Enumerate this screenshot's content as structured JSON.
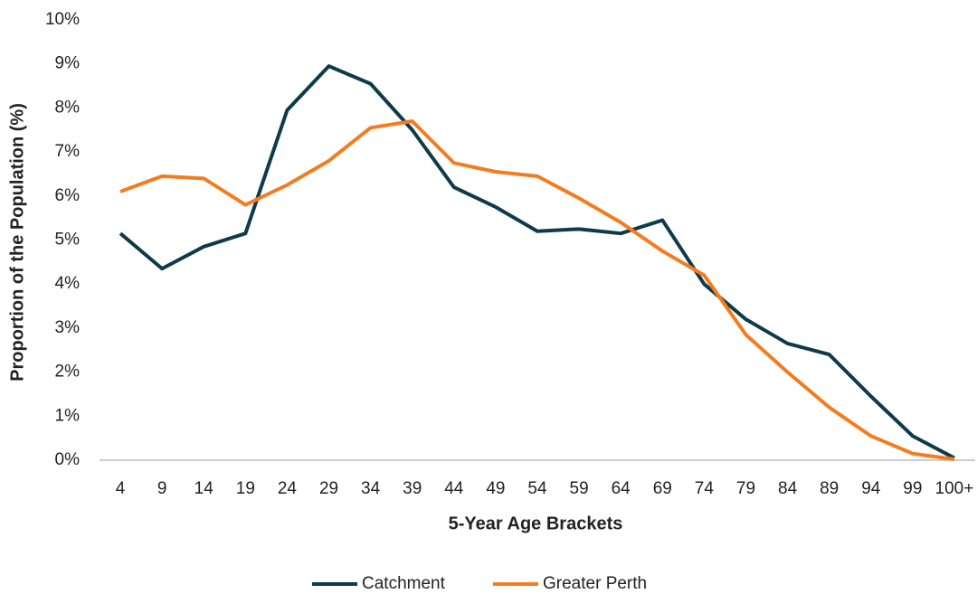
{
  "chart_data": {
    "type": "line",
    "x_label": "5-Year Age Brackets",
    "y_label": "Proportion of the Population (%)",
    "categories": [
      "4",
      "9",
      "14",
      "19",
      "24",
      "29",
      "34",
      "39",
      "44",
      "49",
      "54",
      "59",
      "64",
      "69",
      "74",
      "79",
      "84",
      "89",
      "94",
      "99",
      "100+"
    ],
    "series": [
      {
        "name": "Catchment",
        "color": "#0d3b4a",
        "values": [
          5.15,
          4.35,
          4.85,
          5.15,
          7.95,
          8.95,
          8.55,
          7.5,
          6.2,
          5.75,
          5.2,
          5.25,
          5.15,
          5.45,
          4.0,
          3.2,
          2.65,
          2.4,
          1.45,
          0.55,
          0.05
        ]
      },
      {
        "name": "Greater Perth",
        "color": "#f47c20",
        "values": [
          6.1,
          6.45,
          6.4,
          5.8,
          6.25,
          6.8,
          7.55,
          7.7,
          6.75,
          6.55,
          6.45,
          5.95,
          5.4,
          4.75,
          4.2,
          2.85,
          2.0,
          1.2,
          0.55,
          0.15,
          0.02
        ]
      }
    ],
    "ylim": [
      0,
      10
    ],
    "yticks": [
      {
        "value": 0,
        "label": "0%"
      },
      {
        "value": 1,
        "label": "1%"
      },
      {
        "value": 2,
        "label": "2%"
      },
      {
        "value": 3,
        "label": "3%"
      },
      {
        "value": 4,
        "label": "4%"
      },
      {
        "value": 5,
        "label": "5%"
      },
      {
        "value": 6,
        "label": "6%"
      },
      {
        "value": 7,
        "label": "7%"
      },
      {
        "value": 8,
        "label": "8%"
      },
      {
        "value": 9,
        "label": "9%"
      },
      {
        "value": 10,
        "label": "10%"
      }
    ],
    "legend": "bottom"
  }
}
